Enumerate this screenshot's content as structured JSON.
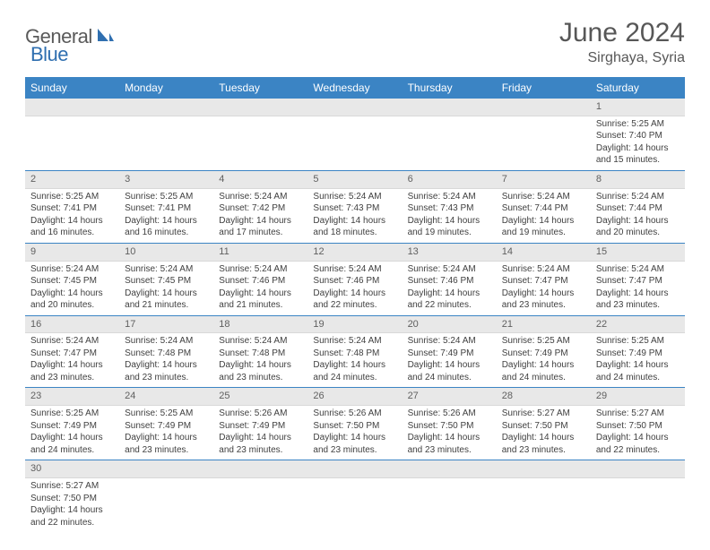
{
  "brand": {
    "part1": "General",
    "part2": "Blue"
  },
  "title": "June 2024",
  "location": "Sirghaya, Syria",
  "colors": {
    "header_bg": "#3b84c4",
    "header_fg": "#ffffff",
    "daynum_bg": "#e8e8e8",
    "rule": "#3b84c4",
    "text": "#404040",
    "title_color": "#575757"
  },
  "dow": [
    "Sunday",
    "Monday",
    "Tuesday",
    "Wednesday",
    "Thursday",
    "Friday",
    "Saturday"
  ],
  "weeks": [
    [
      null,
      null,
      null,
      null,
      null,
      null,
      {
        "n": "1",
        "sr": "5:25 AM",
        "ss": "7:40 PM",
        "dl": "14 hours and 15 minutes."
      }
    ],
    [
      {
        "n": "2",
        "sr": "5:25 AM",
        "ss": "7:41 PM",
        "dl": "14 hours and 16 minutes."
      },
      {
        "n": "3",
        "sr": "5:25 AM",
        "ss": "7:41 PM",
        "dl": "14 hours and 16 minutes."
      },
      {
        "n": "4",
        "sr": "5:24 AM",
        "ss": "7:42 PM",
        "dl": "14 hours and 17 minutes."
      },
      {
        "n": "5",
        "sr": "5:24 AM",
        "ss": "7:43 PM",
        "dl": "14 hours and 18 minutes."
      },
      {
        "n": "6",
        "sr": "5:24 AM",
        "ss": "7:43 PM",
        "dl": "14 hours and 19 minutes."
      },
      {
        "n": "7",
        "sr": "5:24 AM",
        "ss": "7:44 PM",
        "dl": "14 hours and 19 minutes."
      },
      {
        "n": "8",
        "sr": "5:24 AM",
        "ss": "7:44 PM",
        "dl": "14 hours and 20 minutes."
      }
    ],
    [
      {
        "n": "9",
        "sr": "5:24 AM",
        "ss": "7:45 PM",
        "dl": "14 hours and 20 minutes."
      },
      {
        "n": "10",
        "sr": "5:24 AM",
        "ss": "7:45 PM",
        "dl": "14 hours and 21 minutes."
      },
      {
        "n": "11",
        "sr": "5:24 AM",
        "ss": "7:46 PM",
        "dl": "14 hours and 21 minutes."
      },
      {
        "n": "12",
        "sr": "5:24 AM",
        "ss": "7:46 PM",
        "dl": "14 hours and 22 minutes."
      },
      {
        "n": "13",
        "sr": "5:24 AM",
        "ss": "7:46 PM",
        "dl": "14 hours and 22 minutes."
      },
      {
        "n": "14",
        "sr": "5:24 AM",
        "ss": "7:47 PM",
        "dl": "14 hours and 23 minutes."
      },
      {
        "n": "15",
        "sr": "5:24 AM",
        "ss": "7:47 PM",
        "dl": "14 hours and 23 minutes."
      }
    ],
    [
      {
        "n": "16",
        "sr": "5:24 AM",
        "ss": "7:47 PM",
        "dl": "14 hours and 23 minutes."
      },
      {
        "n": "17",
        "sr": "5:24 AM",
        "ss": "7:48 PM",
        "dl": "14 hours and 23 minutes."
      },
      {
        "n": "18",
        "sr": "5:24 AM",
        "ss": "7:48 PM",
        "dl": "14 hours and 23 minutes."
      },
      {
        "n": "19",
        "sr": "5:24 AM",
        "ss": "7:48 PM",
        "dl": "14 hours and 24 minutes."
      },
      {
        "n": "20",
        "sr": "5:24 AM",
        "ss": "7:49 PM",
        "dl": "14 hours and 24 minutes."
      },
      {
        "n": "21",
        "sr": "5:25 AM",
        "ss": "7:49 PM",
        "dl": "14 hours and 24 minutes."
      },
      {
        "n": "22",
        "sr": "5:25 AM",
        "ss": "7:49 PM",
        "dl": "14 hours and 24 minutes."
      }
    ],
    [
      {
        "n": "23",
        "sr": "5:25 AM",
        "ss": "7:49 PM",
        "dl": "14 hours and 24 minutes."
      },
      {
        "n": "24",
        "sr": "5:25 AM",
        "ss": "7:49 PM",
        "dl": "14 hours and 23 minutes."
      },
      {
        "n": "25",
        "sr": "5:26 AM",
        "ss": "7:49 PM",
        "dl": "14 hours and 23 minutes."
      },
      {
        "n": "26",
        "sr": "5:26 AM",
        "ss": "7:50 PM",
        "dl": "14 hours and 23 minutes."
      },
      {
        "n": "27",
        "sr": "5:26 AM",
        "ss": "7:50 PM",
        "dl": "14 hours and 23 minutes."
      },
      {
        "n": "28",
        "sr": "5:27 AM",
        "ss": "7:50 PM",
        "dl": "14 hours and 23 minutes."
      },
      {
        "n": "29",
        "sr": "5:27 AM",
        "ss": "7:50 PM",
        "dl": "14 hours and 22 minutes."
      }
    ],
    [
      {
        "n": "30",
        "sr": "5:27 AM",
        "ss": "7:50 PM",
        "dl": "14 hours and 22 minutes."
      },
      null,
      null,
      null,
      null,
      null,
      null
    ]
  ],
  "labels": {
    "sunrise": "Sunrise:",
    "sunset": "Sunset:",
    "daylight": "Daylight:"
  }
}
